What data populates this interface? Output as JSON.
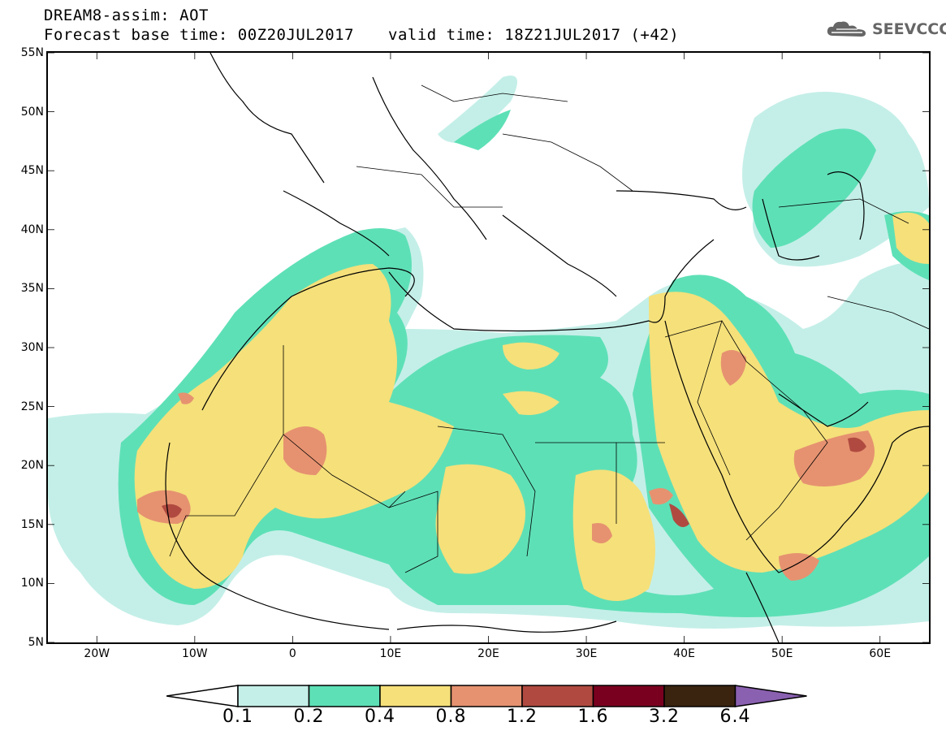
{
  "header": {
    "title_line1": "DREAM8-assim: AOT",
    "title_line2": "Forecast base time: 00Z20JUL2017",
    "valid_time": "valid time: 18Z21JUL2017 (+42)",
    "logo_text": "SEEVCCC"
  },
  "map": {
    "lon_range": [
      -25,
      65
    ],
    "lat_range": [
      5,
      55
    ],
    "lat_labels": [
      "55N",
      "50N",
      "45N",
      "40N",
      "35N",
      "30N",
      "25N",
      "20N",
      "15N",
      "10N",
      "5N"
    ],
    "lat_values": [
      55,
      50,
      45,
      40,
      35,
      30,
      25,
      20,
      15,
      10,
      5
    ],
    "lon_labels": [
      "20W",
      "10W",
      "0",
      "10E",
      "20E",
      "30E",
      "40E",
      "50E",
      "60E"
    ],
    "lon_values": [
      -20,
      -10,
      0,
      10,
      20,
      30,
      40,
      50,
      60
    ]
  },
  "legend": {
    "levels": [
      "0.1",
      "0.2",
      "0.4",
      "0.8",
      "1.2",
      "1.6",
      "3.2",
      "6.4"
    ],
    "colors": [
      "#c4efe8",
      "#5ee0b6",
      "#f5e07a",
      "#e69270",
      "#b04a40",
      "#7a0020",
      "#3a2410",
      "#8a60b0"
    ]
  },
  "colors": {
    "light_teal": "#c4efe8",
    "teal": "#5ee0b6",
    "yellow": "#f5e07a",
    "orange": "#e69270",
    "brown_red": "#b04a40",
    "dark_red": "#7a0020",
    "dark_brown": "#3a2410",
    "purple": "#8a60b0"
  }
}
